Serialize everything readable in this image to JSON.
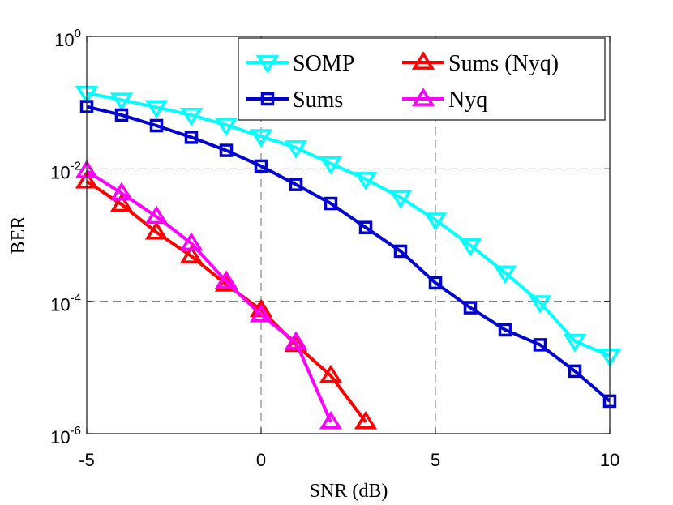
{
  "chart_data": {
    "type": "line",
    "title": "",
    "xlabel": "SNR (dB)",
    "ylabel": "BER",
    "xlim": [
      -5,
      10
    ],
    "ylim": [
      1e-06,
      1
    ],
    "yscale": "log",
    "grid": true,
    "legend": "top-right",
    "x_ticks": [
      -5,
      0,
      5,
      10
    ],
    "x_tick_labels": [
      "-5",
      "0",
      "5",
      "10"
    ],
    "y_ticks": [
      {
        "value": 1,
        "base": "10",
        "exp": "0"
      },
      {
        "value": 0.01,
        "base": "10",
        "exp": "-2"
      },
      {
        "value": 0.0001,
        "base": "10",
        "exp": "-4"
      },
      {
        "value": 1e-06,
        "base": "10",
        "exp": "-6"
      }
    ],
    "series": [
      {
        "name": "SOMP",
        "color": "#00ffff",
        "marker": "triangle-down",
        "x": [
          -5,
          -4,
          -3,
          -2,
          -1,
          0,
          1,
          2,
          3,
          4,
          5,
          6,
          7,
          8,
          9,
          10
        ],
        "values": [
          0.14,
          0.11,
          0.085,
          0.065,
          0.046,
          0.031,
          0.021,
          0.012,
          0.007,
          0.0037,
          0.0017,
          0.0007,
          0.00027,
          9.6e-05,
          2.5e-05,
          1.5e-05
        ]
      },
      {
        "name": "Sums (Nyq)",
        "color": "#ff0000",
        "marker": "triangle-up",
        "x": [
          -5,
          -4,
          -3,
          -2,
          -1,
          0,
          1,
          2,
          3
        ],
        "values": [
          0.0065,
          0.0029,
          0.0011,
          0.00048,
          0.00018,
          7.4e-05,
          2.2e-05,
          7.5e-06,
          1.5e-06
        ]
      },
      {
        "name": "Sums",
        "color": "#0000d0",
        "marker": "square",
        "x": [
          -5,
          -4,
          -3,
          -2,
          -1,
          0,
          1,
          2,
          3,
          4,
          5,
          6,
          7,
          8,
          9,
          10
        ],
        "values": [
          0.087,
          0.065,
          0.045,
          0.03,
          0.019,
          0.011,
          0.0058,
          0.003,
          0.0013,
          0.00057,
          0.00019,
          8e-05,
          3.7e-05,
          2.2e-05,
          8.8e-06,
          3.1e-06
        ]
      },
      {
        "name": "Nyq",
        "color": "#ff00ff",
        "marker": "triangle-up",
        "x": [
          -5,
          -4,
          -3,
          -2,
          -1,
          0,
          1,
          2
        ],
        "values": [
          0.0093,
          0.0043,
          0.0019,
          0.00075,
          0.0002,
          6.2e-05,
          2.4e-05,
          1.5e-06
        ]
      }
    ]
  }
}
